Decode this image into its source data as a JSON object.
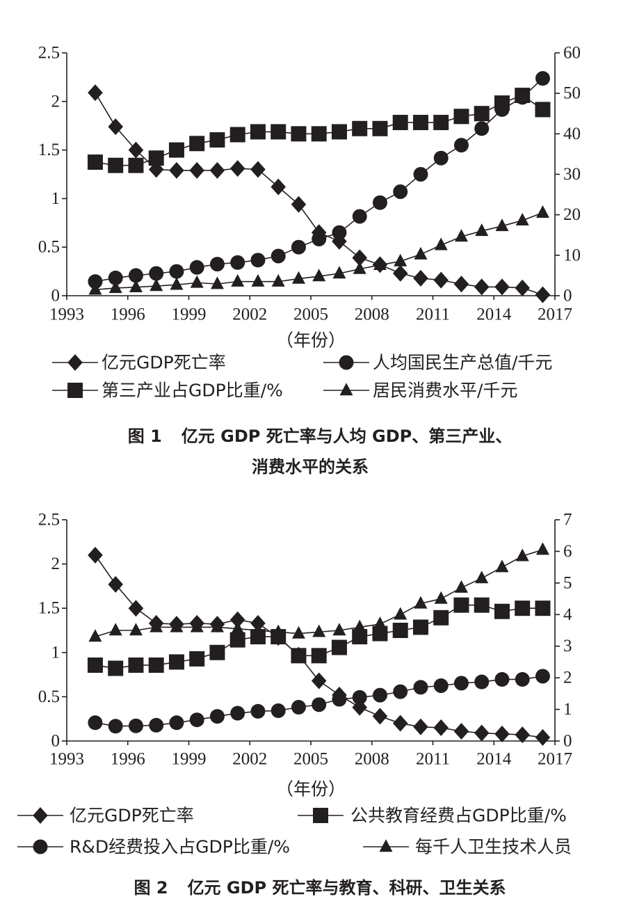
{
  "chart_data": [
    {
      "type": "line",
      "title": "亿元 GDP 死亡率与人均 GDP、第三产业、消费水平的关系",
      "figure_label": "图 1",
      "caption_lines": [
        "亿元 GDP 死亡率与人均 GDP、第三产业、",
        "消费水平的关系"
      ],
      "xlabel": "（年份）",
      "x_ticks": [
        "1993",
        "1996",
        "1999",
        "2002",
        "2005",
        "2008",
        "2011",
        "2014",
        "2017"
      ],
      "y_left_ticks": [
        "2.5",
        "2",
        "1.5",
        "1",
        "0.5",
        "0"
      ],
      "y_right_ticks": [
        "60",
        "50",
        "40",
        "30",
        "20",
        "10",
        "0"
      ],
      "xlim": [
        1993,
        2017
      ],
      "ylim_left": [
        0,
        2.5
      ],
      "ylim_right": [
        0,
        60
      ],
      "grid": false,
      "legend_position": "bottom",
      "x": [
        1993.4,
        1994.4,
        1995.4,
        1996.4,
        1997.4,
        1998.4,
        1999.4,
        2000.4,
        2001.4,
        2002.4,
        2003.4,
        2004.4,
        2005.4,
        2006.4,
        2007.4,
        2008.4,
        2009.4,
        2010.4,
        2011.4,
        2012.4,
        2013.4,
        2014.4,
        2015.4,
        2016.4
      ],
      "series": [
        {
          "name": "亿元GDP死亡率",
          "axis": "left",
          "marker": "diamond",
          "values": [
            null,
            2.09,
            1.74,
            1.5,
            1.3,
            1.29,
            1.29,
            1.29,
            1.31,
            1.3,
            1.12,
            0.94,
            0.65,
            0.56,
            0.39,
            0.32,
            0.23,
            0.18,
            0.16,
            0.12,
            0.09,
            0.09,
            0.08,
            0.01
          ]
        },
        {
          "name": "人均国民生产总值/千元",
          "axis": "right",
          "marker": "circle",
          "values": [
            null,
            3.5,
            4.4,
            5.0,
            5.5,
            6.0,
            7.0,
            7.8,
            8.2,
            8.8,
            9.8,
            12.0,
            14.0,
            15.6,
            19.6,
            23.0,
            25.7,
            30.0,
            34.0,
            37.2,
            41.3,
            46.0,
            49.0,
            53.7
          ]
        },
        {
          "name": "第三产业占GDP比重/%",
          "axis": "right",
          "marker": "square",
          "values": [
            null,
            33.0,
            32.2,
            32.2,
            34.0,
            36.0,
            37.6,
            38.5,
            39.8,
            40.5,
            40.5,
            40.0,
            40.0,
            40.5,
            41.3,
            41.3,
            42.8,
            42.8,
            42.8,
            44.3,
            45.0,
            47.6,
            49.5,
            46.0
          ]
        },
        {
          "name": "居民消费水平/千元",
          "axis": "right",
          "marker": "triangle",
          "values": [
            null,
            1.5,
            1.9,
            2.1,
            2.4,
            2.7,
            3.2,
            2.9,
            3.5,
            3.5,
            3.5,
            4.2,
            4.8,
            5.5,
            6.6,
            7.6,
            8.5,
            10.2,
            12.5,
            14.6,
            16.0,
            17.2,
            18.6,
            20.5
          ]
        }
      ]
    },
    {
      "type": "line",
      "title": "亿元 GDP 死亡率与教育、科研、卫生关系",
      "figure_label": "图 2",
      "caption_lines": [
        "亿元 GDP 死亡率与教育、科研、卫生关系"
      ],
      "xlabel": "（年份）",
      "x_ticks": [
        "1993",
        "1996",
        "1999",
        "2002",
        "2005",
        "2008",
        "2011",
        "2014",
        "2017"
      ],
      "y_left_ticks": [
        "2.5",
        "2",
        "1.5",
        "1",
        "0.5",
        "0"
      ],
      "y_right_ticks": [
        "7",
        "6",
        "5",
        "4",
        "3",
        "2",
        "1",
        "0"
      ],
      "xlim": [
        1993,
        2017
      ],
      "ylim_left": [
        0,
        2.5
      ],
      "ylim_right": [
        0,
        7
      ],
      "grid": false,
      "legend_position": "bottom",
      "x": [
        1993.4,
        1994.4,
        1995.4,
        1996.4,
        1997.4,
        1998.4,
        1999.4,
        2000.4,
        2001.4,
        2002.4,
        2003.4,
        2004.4,
        2005.4,
        2006.4,
        2007.4,
        2008.4,
        2009.4,
        2010.4,
        2011.4,
        2012.4,
        2013.4,
        2014.4,
        2015.4,
        2016.4
      ],
      "series": [
        {
          "name": "亿元GDP死亡率",
          "axis": "left",
          "marker": "diamond",
          "values": [
            null,
            2.1,
            1.77,
            1.5,
            1.33,
            1.32,
            1.33,
            1.32,
            1.37,
            1.33,
            1.17,
            0.97,
            0.68,
            0.52,
            0.38,
            0.28,
            0.2,
            0.16,
            0.15,
            0.11,
            0.09,
            0.08,
            0.07,
            0.04
          ]
        },
        {
          "name": "公共教育经费占GDP比重/%",
          "axis": "right",
          "marker": "square",
          "values": [
            null,
            2.4,
            2.3,
            2.4,
            2.4,
            2.5,
            2.6,
            2.8,
            3.2,
            3.3,
            3.3,
            2.7,
            2.7,
            2.96,
            3.3,
            3.4,
            3.5,
            3.6,
            3.9,
            4.3,
            4.3,
            4.1,
            4.2,
            4.2
          ]
        },
        {
          "name": "R&D经费投入占GDP比重/%",
          "axis": "right",
          "marker": "circle",
          "values": [
            null,
            0.58,
            0.47,
            0.48,
            0.5,
            0.58,
            0.67,
            0.78,
            0.88,
            0.94,
            0.96,
            1.07,
            1.15,
            1.32,
            1.38,
            1.45,
            1.56,
            1.7,
            1.75,
            1.83,
            1.87,
            1.95,
            1.95,
            2.05
          ]
        },
        {
          "name": "每千人卫生技术人员",
          "axis": "right",
          "marker": "triangle",
          "values": [
            null,
            3.3,
            3.5,
            3.5,
            3.6,
            3.6,
            3.6,
            3.6,
            3.55,
            3.5,
            3.45,
            3.4,
            3.45,
            3.5,
            3.6,
            3.7,
            4.0,
            4.35,
            4.5,
            4.85,
            5.15,
            5.5,
            5.85,
            6.05
          ]
        }
      ]
    }
  ]
}
